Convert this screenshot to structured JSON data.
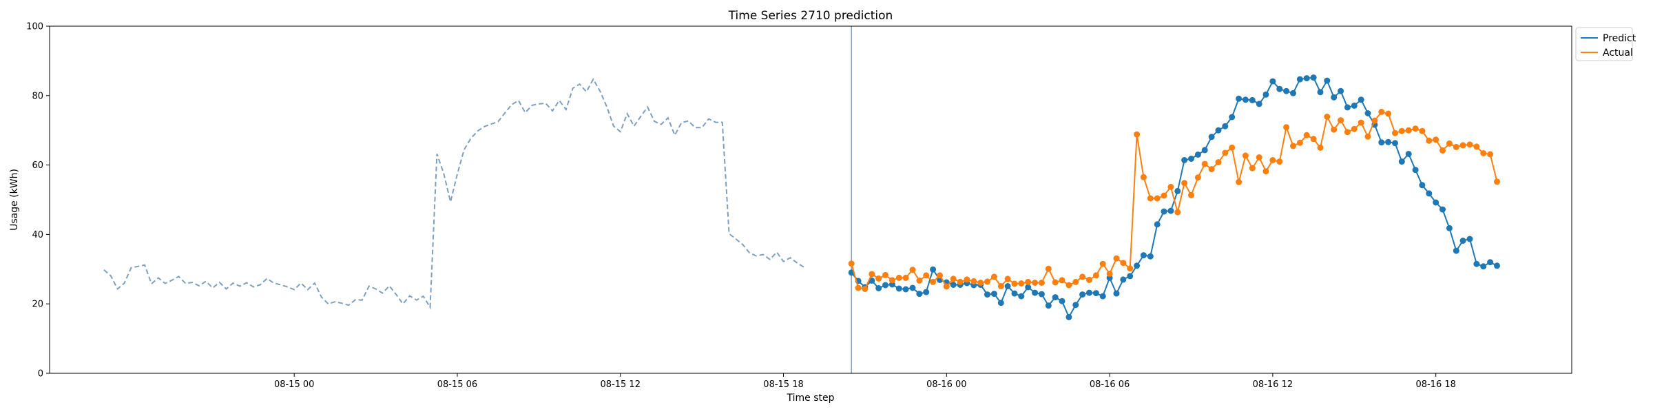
{
  "chart_data": {
    "type": "line",
    "title": "Time Series 2710 prediction",
    "xlabel": "Time step",
    "ylabel": "Usage (kWh)",
    "ylim": [
      0,
      100
    ],
    "xlim": [
      "2024-08-14 15:00",
      "2024-08-16 23:00"
    ],
    "grid": false,
    "legend": "top-right outside",
    "yticks": [
      0,
      20,
      40,
      60,
      80,
      100
    ],
    "xticks": [
      {
        "t": "2024-08-15 00:00",
        "label": "08-15 00"
      },
      {
        "t": "2024-08-15 06:00",
        "label": "08-15 06"
      },
      {
        "t": "2024-08-15 12:00",
        "label": "08-15 12"
      },
      {
        "t": "2024-08-15 18:00",
        "label": "08-15 18"
      },
      {
        "t": "2024-08-16 00:00",
        "label": "08-16 00"
      },
      {
        "t": "2024-08-16 06:00",
        "label": "08-16 06"
      },
      {
        "t": "2024-08-16 12:00",
        "label": "08-16 12"
      },
      {
        "t": "2024-08-16 18:00",
        "label": "08-16 18"
      }
    ],
    "split_time": "2024-08-15 20:30",
    "history": {
      "start": "2024-08-14 17:00",
      "step_minutes": 15,
      "color": "#7f9fbf",
      "values": [
        29.8,
        28.1,
        24.3,
        26.0,
        30.4,
        30.8,
        31.2,
        25.8,
        27.5,
        25.9,
        26.8,
        27.9,
        25.9,
        26.2,
        25.2,
        26.5,
        24.6,
        26.2,
        24.3,
        26.0,
        25.1,
        26.1,
        24.9,
        25.5,
        27.3,
        26.0,
        25.5,
        24.9,
        24.1,
        26.0,
        24.1,
        26.0,
        22.0,
        20.0,
        20.6,
        20.2,
        19.6,
        21.2,
        21.1,
        25.1,
        24.3,
        23.1,
        25.2,
        22.7,
        20.0,
        22.3,
        21.1,
        22.2,
        19.0,
        63.2,
        57.6,
        49.4,
        57.4,
        64.4,
        67.7,
        69.8,
        71.1,
        71.8,
        72.5,
        75.0,
        77.4,
        78.6,
        75.1,
        77.2,
        77.6,
        77.8,
        75.6,
        78.6,
        76.0,
        82.1,
        83.3,
        81.1,
        84.7,
        81.3,
        76.8,
        71.2,
        69.6,
        74.8,
        71.2,
        74.0,
        76.7,
        72.6,
        71.7,
        73.6,
        68.6,
        72.2,
        72.7,
        70.8,
        70.8,
        73.3,
        72.3,
        72.3,
        40.2,
        38.7,
        37.1,
        34.7,
        33.8,
        34.2,
        32.8,
        34.9,
        32.2,
        33.3,
        31.8,
        30.6
      ]
    },
    "forecast_start": "2024-08-15 20:30",
    "forecast_step_minutes": 15,
    "series": [
      {
        "name": "Predict",
        "color": "#1f77b4",
        "values": [
          29.0,
          26.6,
          24.8,
          26.7,
          24.5,
          25.4,
          25.6,
          24.4,
          24.2,
          24.6,
          22.9,
          23.4,
          29.9,
          26.9,
          26.2,
          25.5,
          25.5,
          26.0,
          25.4,
          25.5,
          22.7,
          22.9,
          20.3,
          25.1,
          23.0,
          22.2,
          24.8,
          23.2,
          22.8,
          19.5,
          21.9,
          20.8,
          16.2,
          19.7,
          22.7,
          23.2,
          23.1,
          22.2,
          27.5,
          23.0,
          27.0,
          28.0,
          31.0,
          34.0,
          33.7,
          42.9,
          46.6,
          46.8,
          52.5,
          61.4,
          61.8,
          63.0,
          64.3,
          68.1,
          70.0,
          71.2,
          73.8,
          79.1,
          78.8,
          78.7,
          77.6,
          80.3,
          84.1,
          81.9,
          81.3,
          80.7,
          84.7,
          85.0,
          85.2,
          81.0,
          84.3,
          79.5,
          81.3,
          76.6,
          77.1,
          78.8,
          74.9,
          71.6,
          66.5,
          66.6,
          66.3,
          61.0,
          63.2,
          58.6,
          54.2,
          51.8,
          49.2,
          47.2,
          41.8,
          35.3,
          38.2,
          38.7,
          31.5,
          30.8,
          32.0,
          31.0
        ]
      },
      {
        "name": "Actual",
        "color": "#ff7f0e",
        "values": [
          31.6,
          24.6,
          24.3,
          28.6,
          27.3,
          28.3,
          26.8,
          27.5,
          27.5,
          29.8,
          26.7,
          28.2,
          26.3,
          28.2,
          25.0,
          27.2,
          26.3,
          27.0,
          26.5,
          26.1,
          26.4,
          27.8,
          25.1,
          27.2,
          25.8,
          25.9,
          26.3,
          26.1,
          26.1,
          30.1,
          26.2,
          26.8,
          25.4,
          26.3,
          27.8,
          26.9,
          28.2,
          31.5,
          28.7,
          33.1,
          31.8,
          30.2,
          68.8,
          56.5,
          50.4,
          50.4,
          51.2,
          53.7,
          46.4,
          54.8,
          51.3,
          56.4,
          60.3,
          58.8,
          60.8,
          63.5,
          65.0,
          55.1,
          62.7,
          59.1,
          62.2,
          58.2,
          61.4,
          61.0,
          70.9,
          65.5,
          66.4,
          68.6,
          67.5,
          65.0,
          73.9,
          70.2,
          72.9,
          69.5,
          70.4,
          72.2,
          68.2,
          72.8,
          75.3,
          74.8,
          69.2,
          69.8,
          70.0,
          70.5,
          69.8,
          67.0,
          67.3,
          64.2,
          66.2,
          65.2,
          65.7,
          65.9,
          65.3,
          63.4,
          63.1,
          55.2
        ]
      }
    ]
  }
}
